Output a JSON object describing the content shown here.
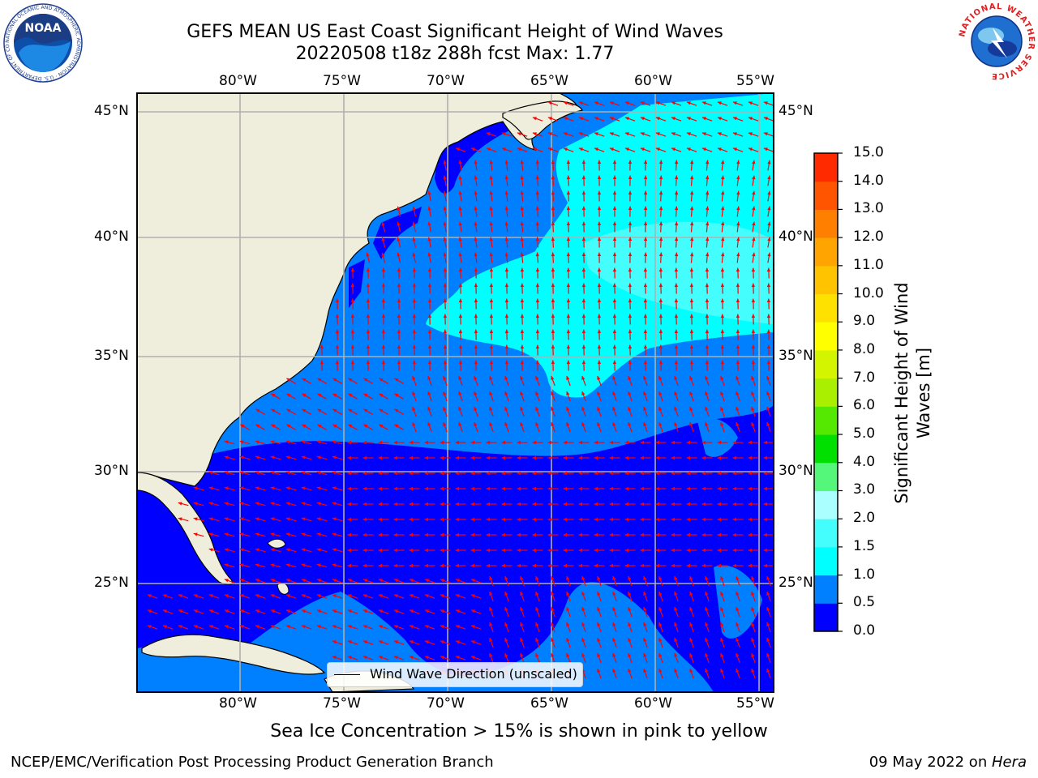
{
  "header": {
    "title_line1": "GEFS MEAN US East Coast Significant Height of Wind Waves",
    "title_line2": "20220508 t18z 288h fcst   Max: 1.77",
    "noaa_logo_text": "NOAA",
    "noaa_ring_text": "NATIONAL OCEANIC AND ATMOSPHERIC ADMINISTRATION · U.S. DEPARTMENT OF COMMERCE",
    "nws_ring_text": "NATIONAL WEATHER SERVICE"
  },
  "map": {
    "lon_labels": [
      "80°W",
      "75°W",
      "70°W",
      "65°W",
      "60°W",
      "55°W"
    ],
    "lat_labels": [
      "45°N",
      "40°N",
      "35°N",
      "30°N",
      "25°N"
    ],
    "lon_range": [
      -85,
      -54
    ],
    "lat_range": [
      20.5,
      46
    ],
    "legend_label": "Wind Wave Direction (unscaled)",
    "colors": {
      "land": "#efeddc",
      "ocean_0_05": "#0000ff",
      "ocean_05_10": "#0080ff",
      "ocean_10_15": "#00ffff",
      "ocean_15_20": "#44fefe",
      "arrow": "#ff0000",
      "grid": "#b0b0b0"
    }
  },
  "colorbar": {
    "label": "Significant Height of Wind Waves [m]",
    "ticks": [
      "0.0",
      "0.5",
      "1.0",
      "1.5",
      "2.0",
      "3.0",
      "4.0",
      "5.0",
      "6.0",
      "7.0",
      "8.0",
      "9.0",
      "10.0",
      "11.0",
      "12.0",
      "13.0",
      "14.0",
      "15.0"
    ],
    "colors": [
      "#0000ff",
      "#0080ff",
      "#00ffff",
      "#44fefe",
      "#aaffff",
      "#55f77a",
      "#00e000",
      "#55e800",
      "#aaee00",
      "#d4f500",
      "#ffff00",
      "#ffe100",
      "#ffc300",
      "#ffa400",
      "#ff8000",
      "#ff5500",
      "#ff2a00",
      "#ff0000"
    ]
  },
  "note": "Sea Ice Concentration > 15% is shown in pink to yellow",
  "footer": {
    "left": "NCEP/EMC/Verification Post Processing Product Generation Branch",
    "right_date": "09 May 2022 on ",
    "right_host": "Hera"
  }
}
